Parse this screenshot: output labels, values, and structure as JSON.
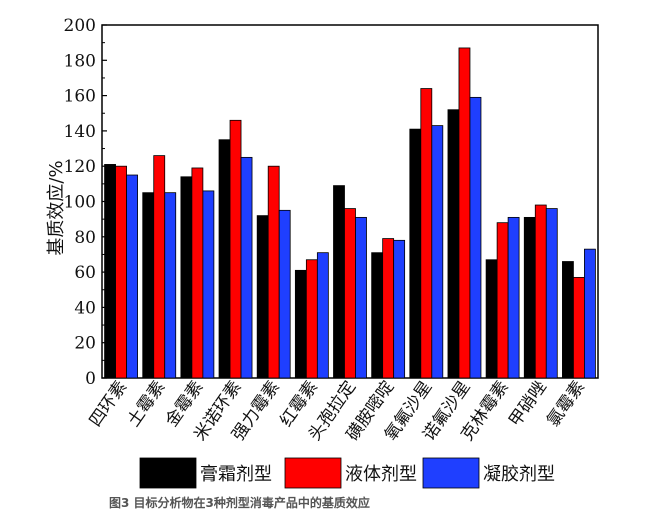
{
  "caption": "图3 目标分析物在3种剂型消毒产品中的基质效应",
  "chart_data": {
    "type": "bar",
    "title": "",
    "xlabel": "",
    "ylabel": "基质效应/%",
    "ylim": [
      0,
      200
    ],
    "yticks": [
      0,
      20,
      40,
      60,
      80,
      100,
      120,
      140,
      160,
      180,
      200
    ],
    "grid": false,
    "legend_position": "bottom",
    "categories": [
      "四环素",
      "土霉素",
      "金霉素",
      "米诺环素",
      "强力霉素",
      "红霉素",
      "头孢拉定",
      "磺胺嘧啶",
      "氧氟沙星",
      "诺氟沙星",
      "克林霉素",
      "甲硝唑",
      "氯霉素"
    ],
    "series": [
      {
        "name": "膏霜剂型",
        "color": "#000000",
        "values": [
          121,
          105,
          114,
          135,
          92,
          61,
          109,
          71,
          141,
          152,
          67,
          91,
          66
        ]
      },
      {
        "name": "液体剂型",
        "color": "#ff0000",
        "values": [
          120,
          126,
          119,
          146,
          120,
          67,
          96,
          79,
          164,
          187,
          88,
          98,
          57
        ]
      },
      {
        "name": "凝胶剂型",
        "color": "#1f3fff",
        "values": [
          115,
          105,
          106,
          125,
          95,
          71,
          91,
          78,
          143,
          159,
          91,
          96,
          73
        ]
      }
    ]
  }
}
